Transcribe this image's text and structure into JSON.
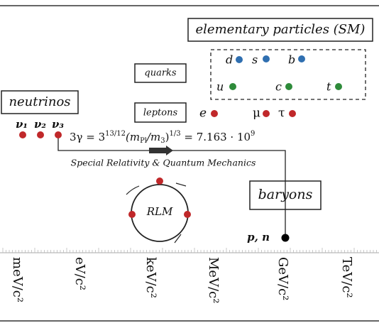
{
  "title": "elementary particles (SM)",
  "groups": {
    "quarks": "quarks",
    "leptons": "leptons",
    "neutrinos": "neutrinos",
    "baryons": "baryons"
  },
  "quarks": [
    "d",
    "s",
    "b",
    "u",
    "c",
    "t"
  ],
  "leptons": [
    "e",
    "μ",
    "τ"
  ],
  "neutrinos": [
    "ν₁",
    "ν₂",
    "ν₃"
  ],
  "baryon_label": "p, n",
  "equation": [
    "3γ = 3",
    "13/12",
    "(m",
    "Pl",
    "/m",
    "3",
    ")",
    "1/3",
    " = 7.163 · 10",
    "9"
  ],
  "theory": "Special Relativity & Quantum Mechanics",
  "cycle": "RLM",
  "scale": [
    "meV/c²",
    "eV/c²",
    "keV/c²",
    "MeV/c²",
    "GeV/c²",
    "TeV/c²"
  ]
}
